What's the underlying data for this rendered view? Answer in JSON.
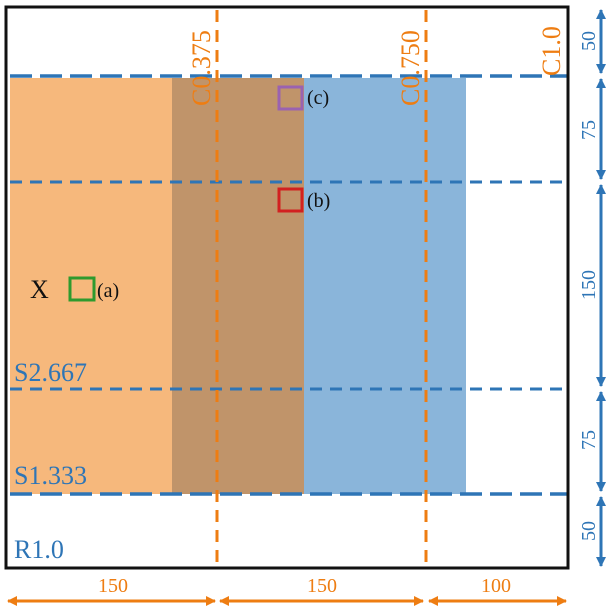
{
  "colors": {
    "orange": "#ee7d12",
    "blue": "#2e75b6",
    "orange_fill": "#f6b87c",
    "blue_fill": "#8ab5da",
    "overlap_fill": "#c0946a",
    "frame": "#111111",
    "green_marker": "#2e9a2e",
    "red_marker": "#d22020",
    "purple_marker": "#9a62b0"
  },
  "labels": {
    "c0375": "C0.375",
    "c0750": "C0.750",
    "c10": "C1.0",
    "s2667": "S2.667",
    "s1333": "S1.333",
    "r10": "R1.0",
    "x_marker": "X",
    "marker_a": "(a)",
    "marker_b": "(b)",
    "marker_c": "(c)"
  },
  "dimensions": {
    "right": [
      "50",
      "75",
      "150",
      "75",
      "50"
    ],
    "bottom": [
      "150",
      "150",
      "100"
    ]
  }
}
